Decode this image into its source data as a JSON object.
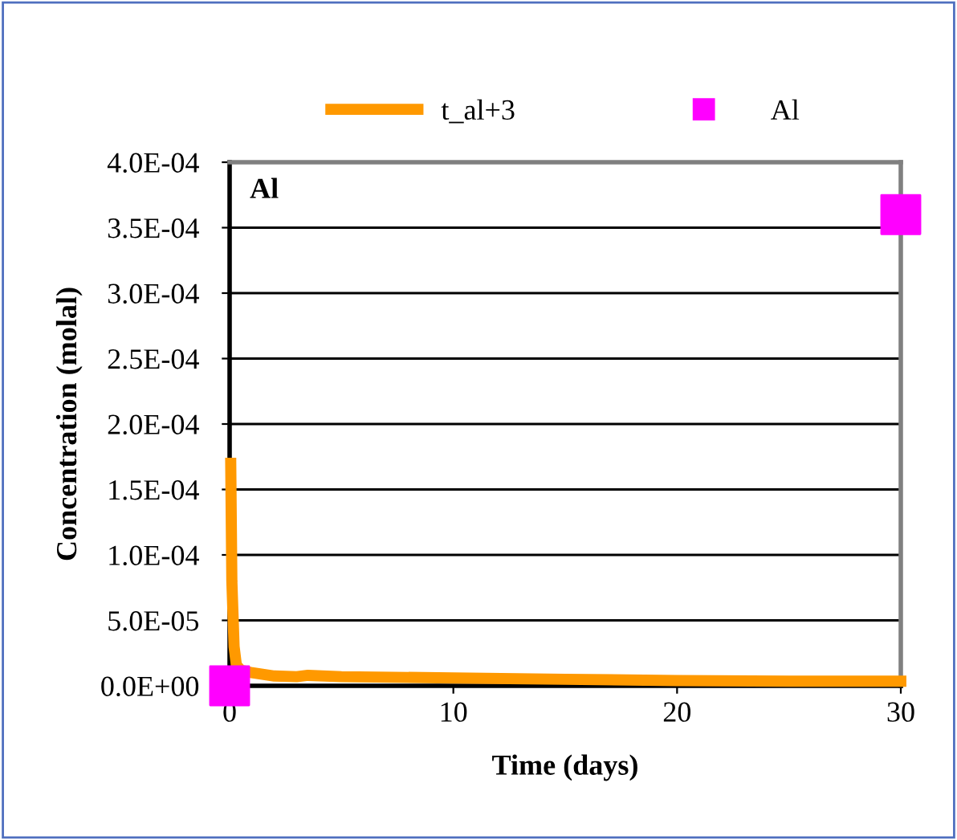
{
  "chart_data": {
    "type": "line",
    "xlabel": "Time (days)",
    "ylabel": "Concentration (molal)",
    "annotations": [
      "Al"
    ],
    "series": [
      {
        "name": "t_al+3",
        "color": "#ff9900",
        "x": [
          0.05,
          0.1,
          0.2,
          0.3,
          0.5,
          1,
          2,
          3,
          3.5,
          5,
          10,
          15,
          20,
          25,
          30
        ],
        "values": [
          0.00017,
          8e-05,
          3e-05,
          1.6e-05,
          1.2e-05,
          1e-05,
          7.5e-06,
          7e-06,
          8e-06,
          7e-06,
          6e-06,
          5e-06,
          4e-06,
          3.5e-06,
          3.5e-06
        ]
      },
      {
        "name": "Al",
        "type": "scatter",
        "color": "#ff00ff",
        "marker": "square",
        "x": [
          0,
          30
        ],
        "values": [
          0,
          0.00036
        ]
      }
    ],
    "xlim": [
      0,
      30
    ],
    "xticks": [
      0,
      10,
      20,
      30
    ],
    "ylim": [
      0,
      0.0004
    ],
    "yticks": [
      {
        "value": 0,
        "label": "0.0E+00"
      },
      {
        "value": 5e-05,
        "label": "5.0E-05"
      },
      {
        "value": 0.0001,
        "label": "1.0E-04"
      },
      {
        "value": 0.00015,
        "label": "1.5E-04"
      },
      {
        "value": 0.0002,
        "label": "2.0E-04"
      },
      {
        "value": 0.00025,
        "label": "2.5E-04"
      },
      {
        "value": 0.0003,
        "label": "3.0E-04"
      },
      {
        "value": 0.00035,
        "label": "3.5E-04"
      },
      {
        "value": 0.0004,
        "label": "4.0E-04"
      }
    ],
    "grid": "y",
    "legend": "top"
  }
}
